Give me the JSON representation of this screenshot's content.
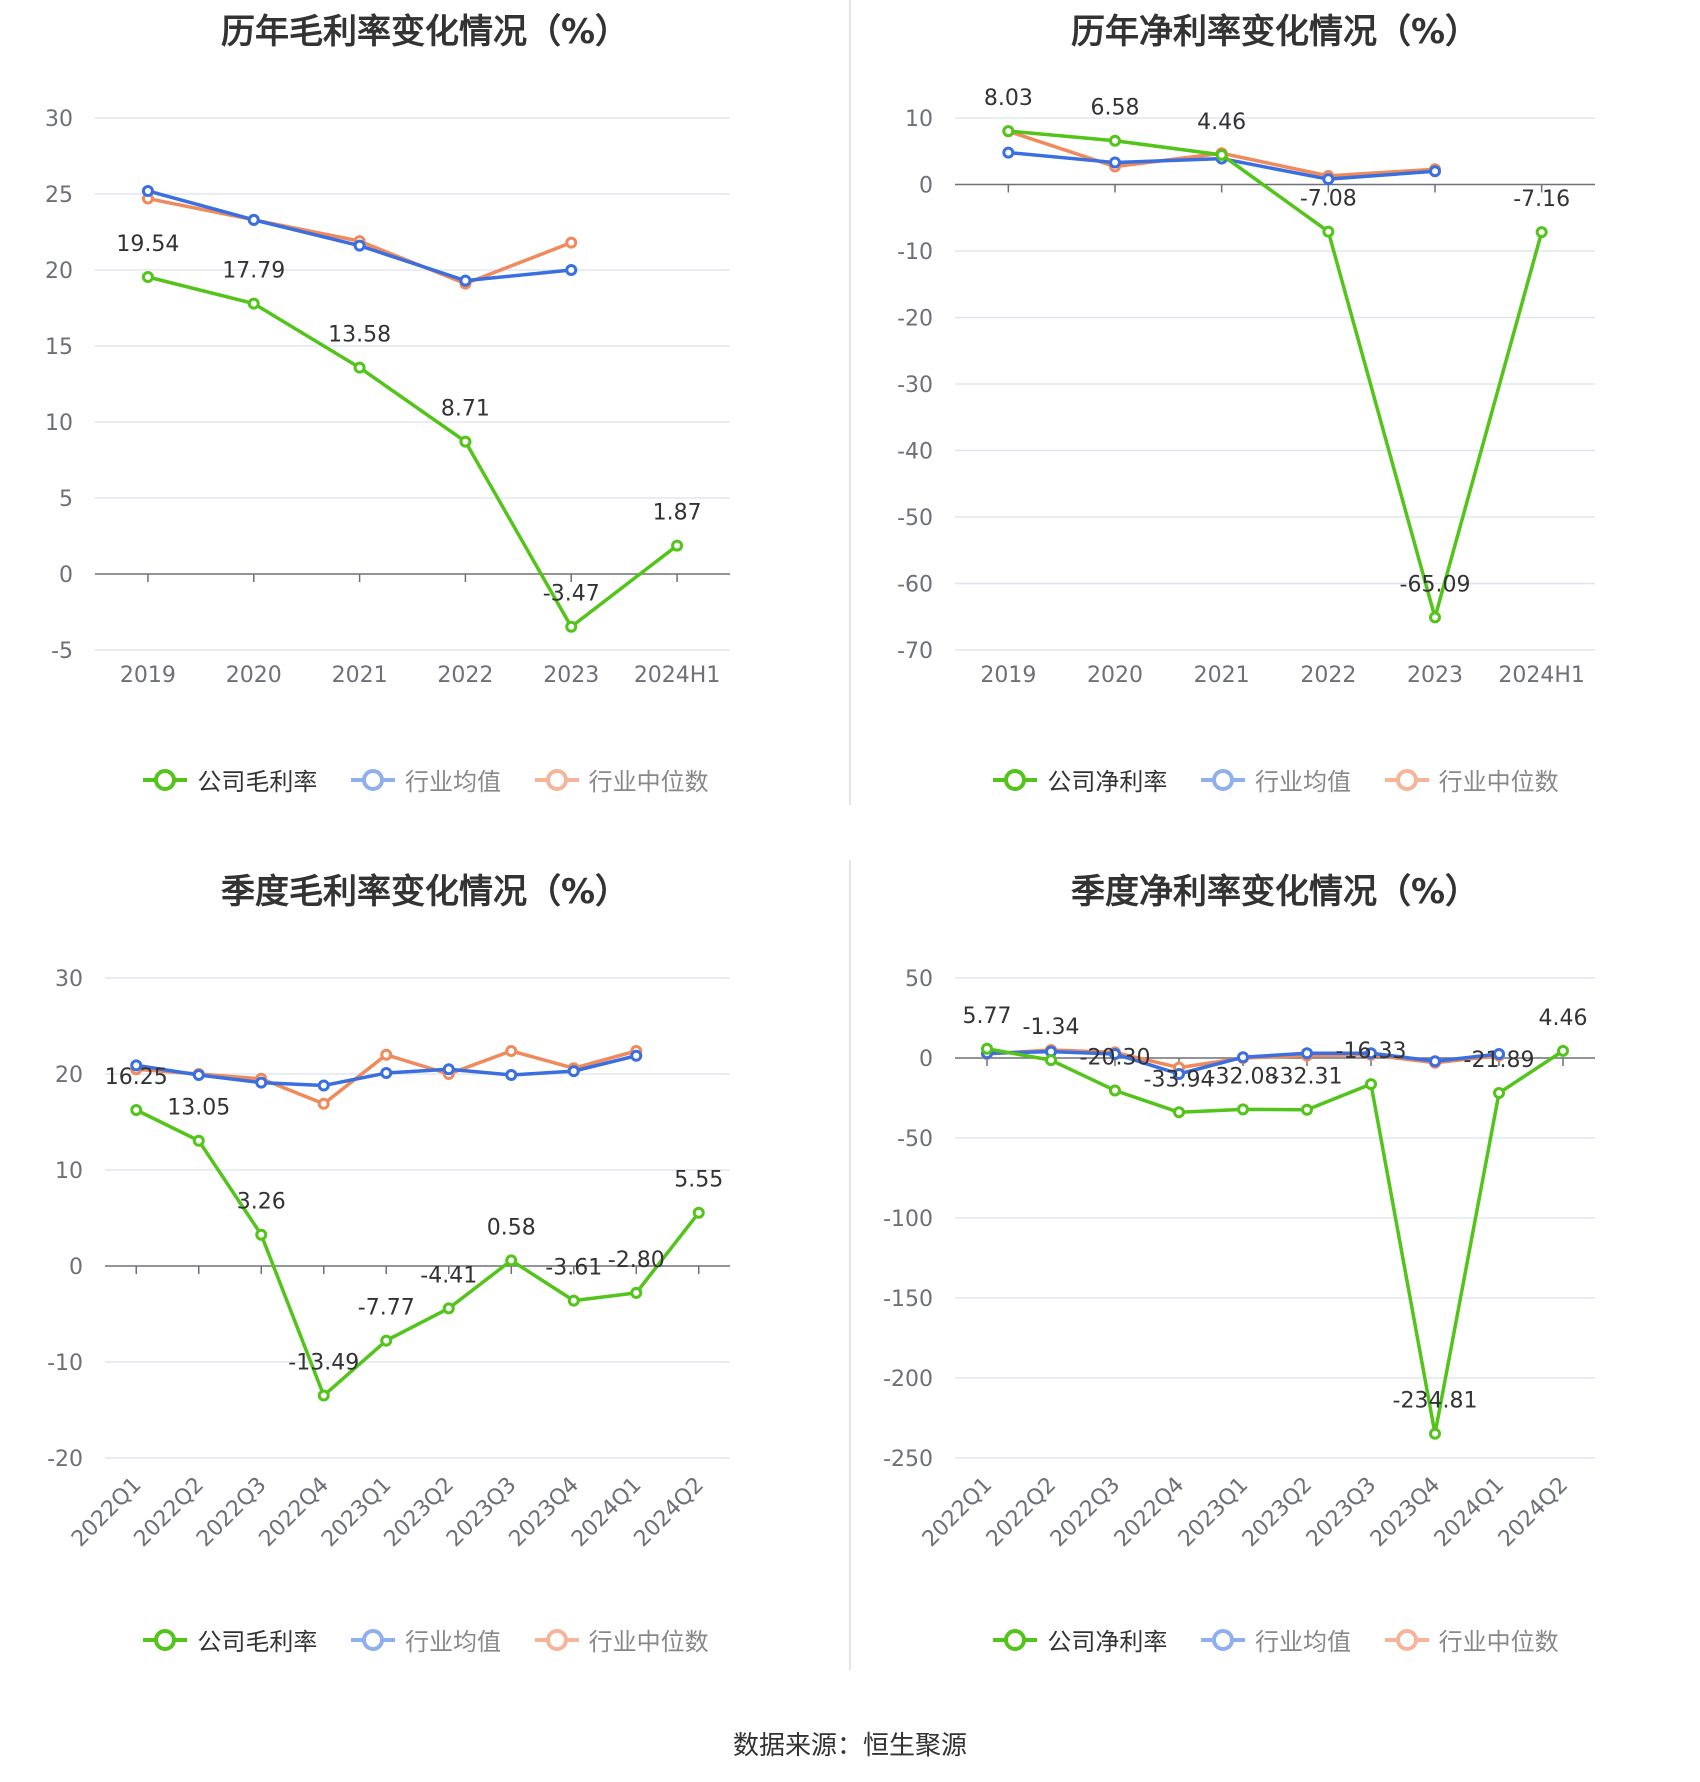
{
  "source": "数据来源：恒生聚源",
  "colors": {
    "company": "#52c41a",
    "avg": "#3a6fe0",
    "median": "#f08a5d",
    "grid": "#e0e6f1",
    "axis": "#6e7079",
    "label": "#333333"
  },
  "legend_icon": "circle-line-icon",
  "chart_data": [
    {
      "type": "line",
      "title": "历年毛利率变化情况（%）",
      "categories": [
        "2019",
        "2020",
        "2021",
        "2022",
        "2023",
        "2024H1"
      ],
      "ylim": [
        -5,
        30
      ],
      "yticks": [
        -5,
        0,
        5,
        10,
        15,
        20,
        25,
        30
      ],
      "ytick_labels": [
        "-5",
        "0",
        "5",
        "10",
        "15",
        "20",
        "25",
        "30"
      ],
      "series": [
        {
          "name": "公司毛利率",
          "role": "company",
          "values": [
            19.54,
            17.79,
            13.58,
            8.71,
            -3.47,
            1.87
          ],
          "labels": [
            "19.54",
            "17.79",
            "13.58",
            "8.71",
            "-3.47",
            "1.87"
          ]
        },
        {
          "name": "行业均值",
          "role": "avg",
          "values": [
            25.2,
            23.3,
            21.6,
            19.3,
            20.0,
            null
          ]
        },
        {
          "name": "行业中位数",
          "role": "median",
          "values": [
            24.7,
            23.3,
            21.9,
            19.1,
            21.8,
            null
          ]
        }
      ]
    },
    {
      "type": "line",
      "title": "历年净利率变化情况（%）",
      "categories": [
        "2019",
        "2020",
        "2021",
        "2022",
        "2023",
        "2024H1"
      ],
      "ylim": [
        -70,
        10
      ],
      "yticks": [
        -70,
        -60,
        -50,
        -40,
        -30,
        -20,
        -10,
        0,
        10
      ],
      "ytick_labels": [
        "-70",
        "-60",
        "-50",
        "-40",
        "-30",
        "-20",
        "-10",
        "0",
        "10"
      ],
      "series": [
        {
          "name": "公司净利率",
          "role": "company",
          "values": [
            8.03,
            6.58,
            4.46,
            -7.08,
            -65.09,
            -7.16
          ],
          "labels": [
            "8.03",
            "6.58",
            "4.46",
            "-7.08",
            "-65.09",
            "-7.16"
          ]
        },
        {
          "name": "行业均值",
          "role": "avg",
          "values": [
            4.8,
            3.3,
            3.9,
            0.8,
            2.0,
            null
          ]
        },
        {
          "name": "行业中位数",
          "role": "median",
          "values": [
            8.0,
            2.7,
            4.7,
            1.3,
            2.3,
            null
          ]
        }
      ]
    },
    {
      "type": "line",
      "title": "季度毛利率变化情况（%）",
      "categories": [
        "2022Q1",
        "2022Q2",
        "2022Q3",
        "2022Q4",
        "2023Q1",
        "2023Q2",
        "2023Q3",
        "2023Q4",
        "2024Q1",
        "2024Q2"
      ],
      "ylim": [
        -20,
        30
      ],
      "yticks": [
        -20,
        -10,
        0,
        10,
        20,
        30
      ],
      "ytick_labels": [
        "-20",
        "-10",
        "0",
        "10",
        "20",
        "30"
      ],
      "series": [
        {
          "name": "公司毛利率",
          "role": "company",
          "values": [
            16.25,
            13.05,
            3.26,
            -13.49,
            -7.77,
            -4.41,
            0.58,
            -3.61,
            -2.8,
            5.55
          ],
          "labels": [
            "16.25",
            "13.05",
            "3.26",
            "-13.49",
            "-7.77",
            "-4.41",
            "0.58",
            "-3.61",
            "-2.80",
            "5.55"
          ]
        },
        {
          "name": "行业均值",
          "role": "avg",
          "values": [
            20.9,
            19.9,
            19.1,
            18.8,
            20.1,
            20.5,
            19.9,
            20.3,
            21.9,
            null
          ]
        },
        {
          "name": "行业中位数",
          "role": "median",
          "values": [
            20.5,
            20.0,
            19.5,
            16.9,
            22.0,
            20.0,
            22.4,
            20.6,
            22.4,
            null
          ]
        }
      ]
    },
    {
      "type": "line",
      "title": "季度净利率变化情况（%）",
      "categories": [
        "2022Q1",
        "2022Q2",
        "2022Q3",
        "2022Q4",
        "2023Q1",
        "2023Q2",
        "2023Q3",
        "2023Q4",
        "2024Q1",
        "2024Q2"
      ],
      "ylim": [
        -250,
        50
      ],
      "yticks": [
        -250,
        -200,
        -150,
        -100,
        -50,
        0,
        50
      ],
      "ytick_labels": [
        "-250",
        "-200",
        "-150",
        "-100",
        "-50",
        "0",
        "50"
      ],
      "series": [
        {
          "name": "公司净利率",
          "role": "company",
          "values": [
            5.77,
            -1.34,
            -20.3,
            -33.94,
            -32.08,
            -32.31,
            -16.33,
            -234.81,
            -21.89,
            4.46
          ],
          "labels": [
            "5.77",
            "-1.34",
            "-20.30",
            "-33.94",
            "-32.08",
            "-32.31",
            "-16.33",
            "-234.81",
            "-21.89",
            "4.46"
          ]
        },
        {
          "name": "行业均值",
          "role": "avg",
          "values": [
            3.0,
            4.0,
            2.5,
            -10.0,
            0.5,
            3.0,
            3.0,
            -2.0,
            2.5,
            null
          ]
        },
        {
          "name": "行业中位数",
          "role": "median",
          "values": [
            2.5,
            5.0,
            3.5,
            -6.0,
            0.0,
            1.5,
            2.0,
            -3.0,
            1.5,
            null
          ]
        }
      ]
    }
  ]
}
